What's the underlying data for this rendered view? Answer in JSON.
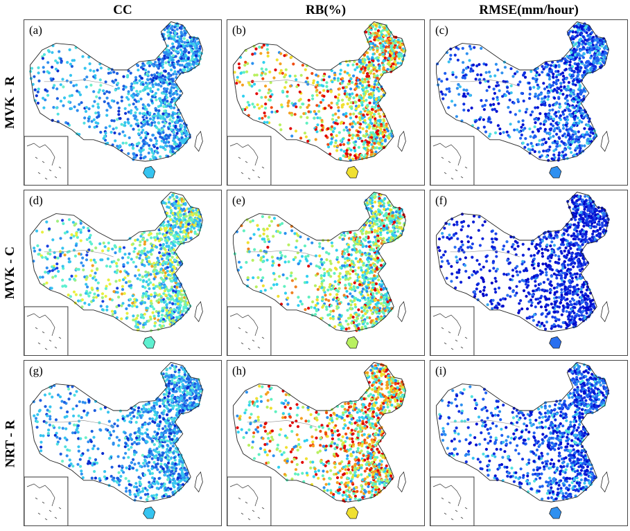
{
  "columns": [
    {
      "title": "CC",
      "scheme": "cc"
    },
    {
      "title": "RB(%)",
      "scheme": "rb"
    },
    {
      "title": "RMSE(mm/hour)",
      "scheme": "rmse"
    }
  ],
  "rows": [
    {
      "title": "MVK - R"
    },
    {
      "title": "MVK - C"
    },
    {
      "title": "NRT - R"
    }
  ],
  "panels": [
    {
      "label": "(a)",
      "row": 0,
      "col": 0,
      "palette": [
        "#0a2fd0",
        "#1d5ee0",
        "#2f8ff0",
        "#36c4f0",
        "#4fe0e0",
        "#6ef0c8"
      ],
      "weights": [
        0.08,
        0.22,
        0.25,
        0.25,
        0.15,
        0.05
      ]
    },
    {
      "label": "(b)",
      "row": 0,
      "col": 1,
      "palette": [
        "#e00000",
        "#f04a10",
        "#f4a020",
        "#f0e030",
        "#b8f060",
        "#60f0c0",
        "#30d0f0",
        "#2a90f0"
      ],
      "weights": [
        0.14,
        0.08,
        0.12,
        0.14,
        0.12,
        0.18,
        0.14,
        0.08
      ]
    },
    {
      "label": "(c)",
      "row": 0,
      "col": 2,
      "palette": [
        "#0010d0",
        "#1030e0",
        "#1f60f0",
        "#2f90f0",
        "#38c0f0",
        "#50e0e0"
      ],
      "weights": [
        0.2,
        0.25,
        0.22,
        0.18,
        0.1,
        0.05
      ]
    },
    {
      "label": "(d)",
      "row": 1,
      "col": 0,
      "palette": [
        "#1840e0",
        "#2f8ff0",
        "#36c4f0",
        "#5ef0d0",
        "#a0f080",
        "#e8f040",
        "#f0a020"
      ],
      "weights": [
        0.05,
        0.12,
        0.22,
        0.25,
        0.18,
        0.14,
        0.04
      ]
    },
    {
      "label": "(e)",
      "row": 1,
      "col": 1,
      "palette": [
        "#e00000",
        "#f08020",
        "#f0e030",
        "#b8f060",
        "#60f0c0",
        "#30d0f0",
        "#2a90f0"
      ],
      "weights": [
        0.06,
        0.05,
        0.1,
        0.2,
        0.27,
        0.22,
        0.1
      ]
    },
    {
      "label": "(f)",
      "row": 1,
      "col": 2,
      "palette": [
        "#0008c8",
        "#0a20d8",
        "#1a40e8",
        "#2a70f0",
        "#38a8f0"
      ],
      "weights": [
        0.3,
        0.28,
        0.22,
        0.14,
        0.06
      ]
    },
    {
      "label": "(g)",
      "row": 2,
      "col": 0,
      "palette": [
        "#0a2fd0",
        "#1d5ee0",
        "#2f8ff0",
        "#36c4f0",
        "#4fe0e0",
        "#6ef0c8"
      ],
      "weights": [
        0.08,
        0.22,
        0.25,
        0.25,
        0.15,
        0.05
      ]
    },
    {
      "label": "(h)",
      "row": 2,
      "col": 1,
      "palette": [
        "#e00000",
        "#f04a10",
        "#f4a020",
        "#f0e030",
        "#b8f060",
        "#60f0c0",
        "#30d0f0",
        "#2a90f0"
      ],
      "weights": [
        0.15,
        0.09,
        0.13,
        0.14,
        0.12,
        0.17,
        0.13,
        0.07
      ]
    },
    {
      "label": "(i)",
      "row": 2,
      "col": 2,
      "palette": [
        "#0010d0",
        "#1030e0",
        "#1f60f0",
        "#2f90f0",
        "#38c0f0",
        "#50e0e0"
      ],
      "weights": [
        0.2,
        0.25,
        0.22,
        0.18,
        0.1,
        0.05
      ]
    }
  ]
}
